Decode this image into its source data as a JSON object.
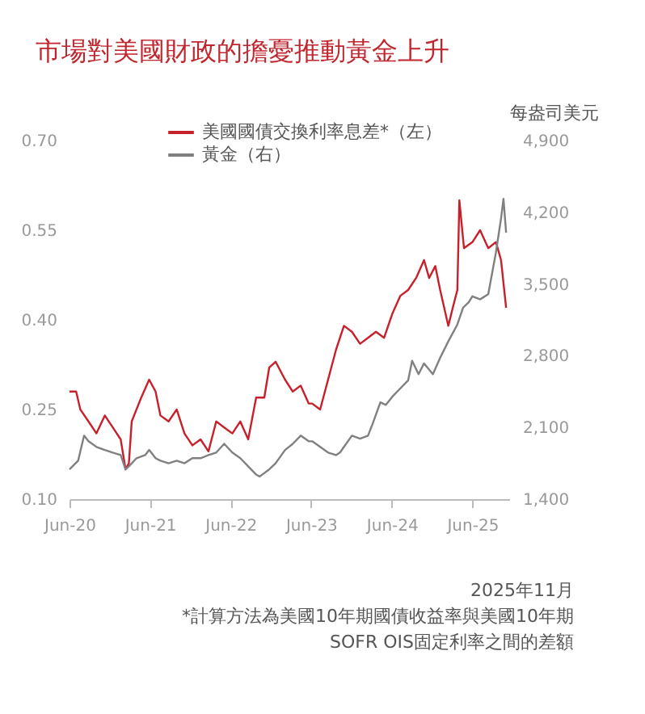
{
  "chart_data": {
    "type": "line",
    "title": "市場對美國財政的擔憂推動黃金上升",
    "y2label": "每盎司美元",
    "legend": "top",
    "annotations": [
      "2025年11月",
      "*計算方法為美國10年期國債收益率與美國10年期 SOFR OIS固定利率之間的差額"
    ],
    "xlim": [
      "2020-06-01",
      "2025-11-15"
    ],
    "xticks": [
      {
        "value": "2020-06-01",
        "label": "Jun-20"
      },
      {
        "value": "2021-06-01",
        "label": "Jun-21"
      },
      {
        "value": "2022-06-01",
        "label": "Jun-22"
      },
      {
        "value": "2023-06-01",
        "label": "Jun-23"
      },
      {
        "value": "2024-06-01",
        "label": "Jun-24"
      },
      {
        "value": "2025-06-01",
        "label": "Jun-25"
      }
    ],
    "ylim": [
      0.1,
      0.7
    ],
    "yticks": [
      {
        "value": 0.1,
        "label": "0.10"
      },
      {
        "value": 0.25,
        "label": "0.25"
      },
      {
        "value": 0.4,
        "label": "0.40"
      },
      {
        "value": 0.55,
        "label": "0.55"
      },
      {
        "value": 0.7,
        "label": "0.70"
      }
    ],
    "y2lim": [
      1400,
      4900
    ],
    "y2ticks": [
      {
        "value": 1400,
        "label": "1,400"
      },
      {
        "value": 2100,
        "label": "2,100"
      },
      {
        "value": 2800,
        "label": "2,800"
      },
      {
        "value": 3500,
        "label": "3,500"
      },
      {
        "value": 4200,
        "label": "4,200"
      },
      {
        "value": 4900,
        "label": "4,900"
      }
    ],
    "series": [
      {
        "name": "美國國債交換利率息差*（左）",
        "color": "#c8202a",
        "x": [
          "2020-06-01",
          "2020-07-01",
          "2020-07-20",
          "2020-08-26",
          "2020-10-01",
          "2020-11-08",
          "2020-12-14",
          "2021-01-19",
          "2021-02-10",
          "2021-02-25",
          "2021-03-10",
          "2021-04-22",
          "2021-05-28",
          "2021-06-26",
          "2021-07-18",
          "2021-08-24",
          "2021-09-30",
          "2021-11-04",
          "2021-12-10",
          "2022-01-16",
          "2022-02-21",
          "2022-03-28",
          "2022-05-03",
          "2022-06-09",
          "2022-07-15",
          "2022-08-20",
          "2022-09-25",
          "2022-11-01",
          "2022-11-23",
          "2022-12-22",
          "2023-02-03",
          "2023-03-10",
          "2023-04-15",
          "2023-05-21",
          "2023-06-06",
          "2023-07-12",
          "2023-08-17",
          "2023-09-22",
          "2023-10-28",
          "2023-12-03",
          "2024-01-09",
          "2024-02-14",
          "2024-03-21",
          "2024-04-27",
          "2024-06-03",
          "2024-07-09",
          "2024-08-14",
          "2024-09-19",
          "2024-10-25",
          "2024-11-17",
          "2024-12-15",
          "2025-01-06",
          "2025-02-12",
          "2025-03-04",
          "2025-03-25",
          "2025-04-03",
          "2025-04-24",
          "2025-06-01",
          "2025-07-06",
          "2025-08-12",
          "2025-09-16",
          "2025-10-09",
          "2025-11-01"
        ],
        "values": [
          0.28,
          0.28,
          0.25,
          0.23,
          0.21,
          0.24,
          0.22,
          0.2,
          0.15,
          0.16,
          0.23,
          0.27,
          0.3,
          0.28,
          0.24,
          0.23,
          0.25,
          0.21,
          0.19,
          0.2,
          0.18,
          0.23,
          0.22,
          0.21,
          0.23,
          0.2,
          0.27,
          0.27,
          0.32,
          0.33,
          0.3,
          0.28,
          0.29,
          0.26,
          0.26,
          0.25,
          0.3,
          0.35,
          0.39,
          0.38,
          0.36,
          0.37,
          0.38,
          0.37,
          0.41,
          0.44,
          0.45,
          0.47,
          0.5,
          0.47,
          0.49,
          0.45,
          0.39,
          0.42,
          0.45,
          0.6,
          0.52,
          0.53,
          0.55,
          0.52,
          0.53,
          0.5,
          0.42
        ]
      },
      {
        "name": "黃金（右）",
        "color": "#808080",
        "axis": "y2",
        "x": [
          "2020-06-01",
          "2020-07-10",
          "2020-08-06",
          "2020-08-26",
          "2020-10-01",
          "2020-11-08",
          "2020-12-14",
          "2021-01-19",
          "2021-02-10",
          "2021-02-25",
          "2021-04-01",
          "2021-05-10",
          "2021-05-28",
          "2021-06-26",
          "2021-07-18",
          "2021-08-24",
          "2021-09-30",
          "2021-11-04",
          "2021-12-10",
          "2022-01-16",
          "2022-02-21",
          "2022-03-28",
          "2022-05-03",
          "2022-06-09",
          "2022-07-15",
          "2022-08-20",
          "2022-09-25",
          "2022-10-10",
          "2022-11-23",
          "2022-12-22",
          "2023-02-03",
          "2023-03-10",
          "2023-04-15",
          "2023-05-21",
          "2023-06-06",
          "2023-07-12",
          "2023-08-17",
          "2023-09-22",
          "2023-10-10",
          "2023-10-28",
          "2023-12-03",
          "2024-01-09",
          "2024-02-14",
          "2024-03-05",
          "2024-04-10",
          "2024-05-05",
          "2024-06-03",
          "2024-07-09",
          "2024-08-14",
          "2024-09-01",
          "2024-09-30",
          "2024-10-25",
          "2024-12-04",
          "2025-01-06",
          "2025-02-12",
          "2025-03-25",
          "2025-04-20",
          "2025-05-15",
          "2025-06-01",
          "2025-07-06",
          "2025-08-12",
          "2025-09-16",
          "2025-10-09",
          "2025-10-20",
          "2025-11-01"
        ],
        "values": [
          1690,
          1775,
          2020,
          1965,
          1910,
          1880,
          1855,
          1830,
          1690,
          1720,
          1800,
          1830,
          1880,
          1800,
          1775,
          1750,
          1775,
          1750,
          1800,
          1800,
          1830,
          1855,
          1940,
          1855,
          1800,
          1720,
          1640,
          1620,
          1690,
          1750,
          1880,
          1940,
          2020,
          1965,
          1965,
          1910,
          1855,
          1830,
          1855,
          1910,
          2020,
          1990,
          2020,
          2130,
          2345,
          2320,
          2400,
          2480,
          2560,
          2750,
          2620,
          2725,
          2620,
          2780,
          2940,
          3105,
          3270,
          3320,
          3380,
          3350,
          3400,
          3810,
          4140,
          4330,
          4000
        ]
      }
    ]
  }
}
